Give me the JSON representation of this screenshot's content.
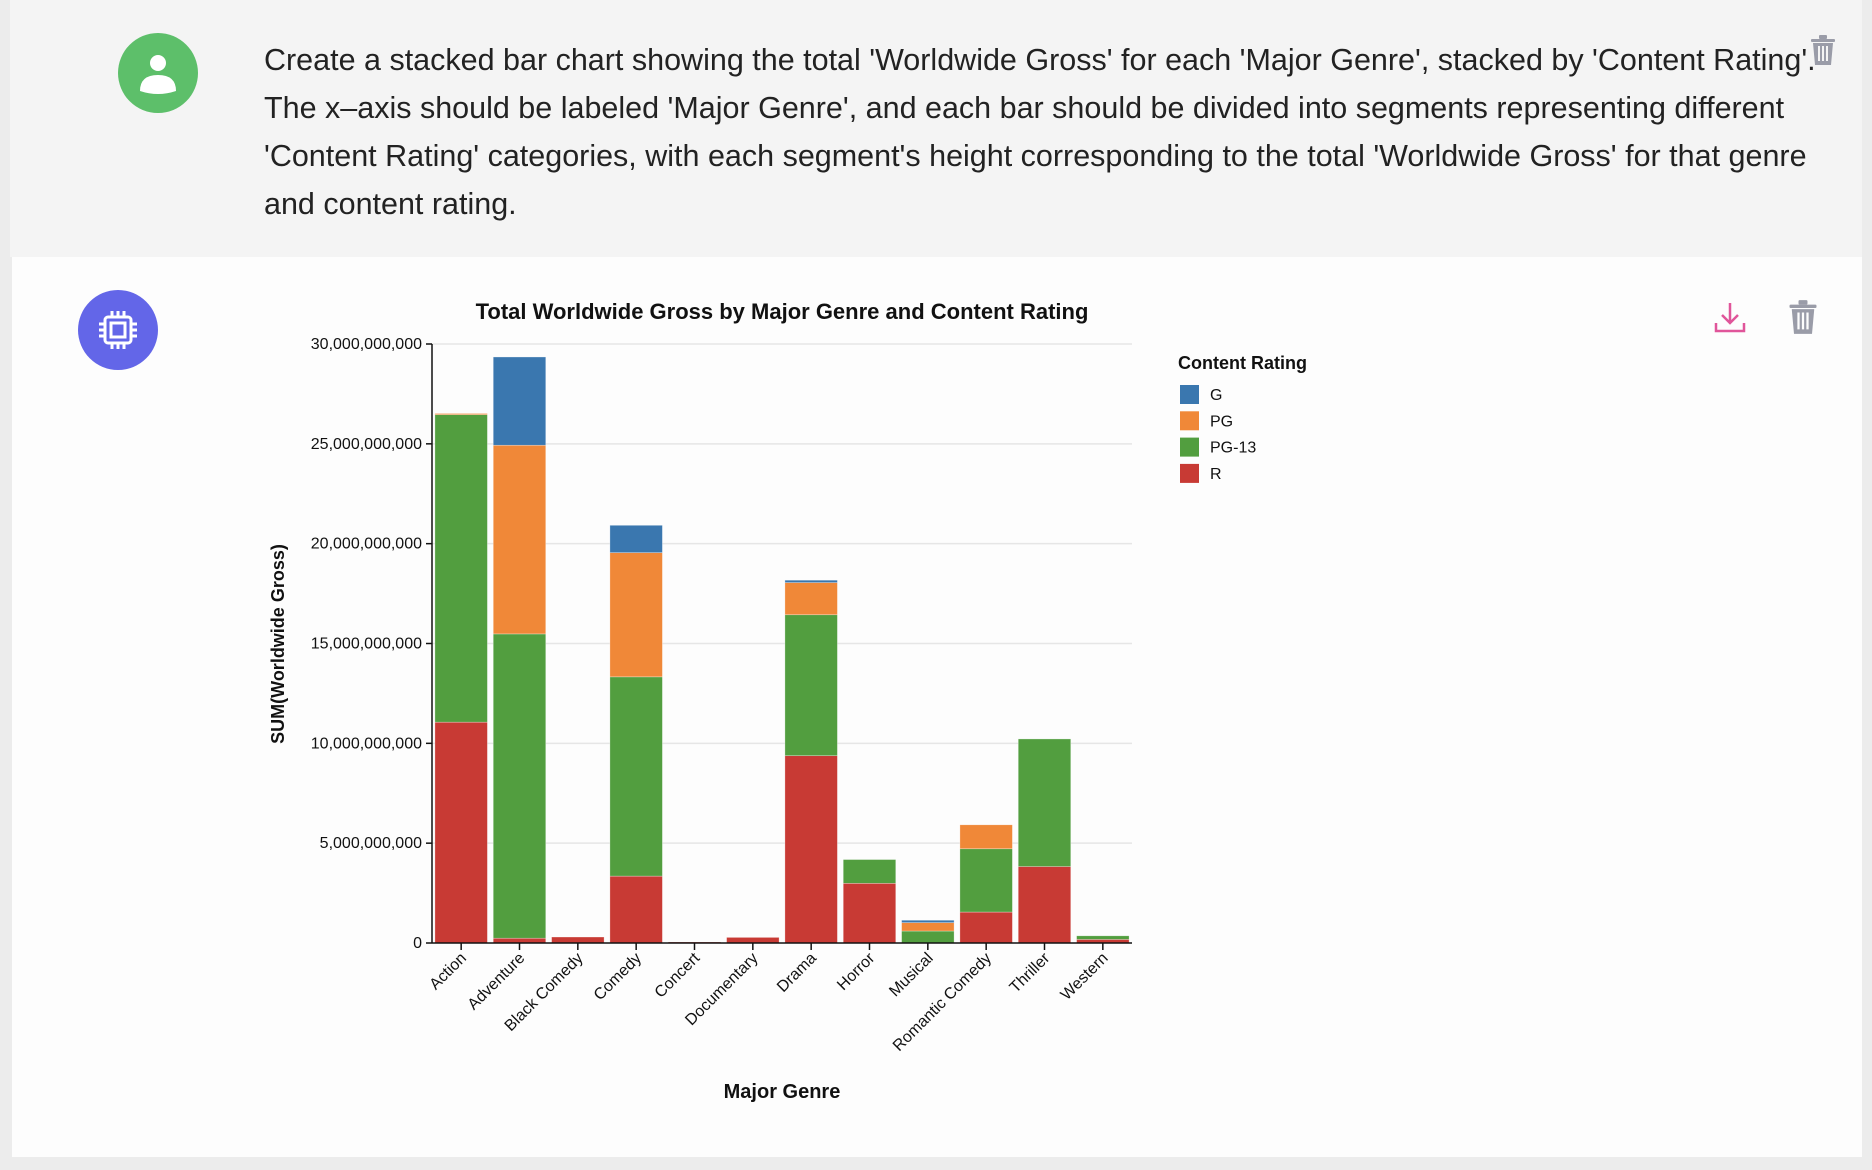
{
  "user_message": {
    "text": "Create a stacked bar chart showing the total 'Worldwide Gross' for each 'Major Genre', stacked by 'Content Rating'. The x–axis should be labeled 'Major Genre', and each bar should be divided into segments representing different 'Content Rating' categories, with each segment's height corresponding to the total 'Worldwide Gross' for that genre and content rating.",
    "avatar_icon": "user-icon",
    "avatar_color": "#5dbf6a",
    "delete_icon": "trash-icon"
  },
  "bot_message": {
    "avatar_icon": "chip-icon",
    "avatar_color": "#6366e8",
    "download_icon": "download-icon",
    "delete_icon": "trash-icon"
  },
  "chart_data": {
    "type": "bar",
    "stacked": true,
    "title": "Total Worldwide Gross by Major Genre and Content Rating",
    "xlabel": "Major Genre",
    "ylabel": "SUM(Worldwide Gross)",
    "ylim": [
      0,
      30000000000
    ],
    "yticks": [
      "0",
      "5,000,000,000",
      "10,000,000,000",
      "15,000,000,000",
      "20,000,000,000",
      "25,000,000,000",
      "30,000,000,000"
    ],
    "grid": true,
    "legend": {
      "title": "Content Rating",
      "placement": "right"
    },
    "categories": [
      "Action",
      "Adventure",
      "Black Comedy",
      "Comedy",
      "Concert",
      "Documentary",
      "Drama",
      "Horror",
      "Musical",
      "Romantic Comedy",
      "Thriller",
      "Western"
    ],
    "series": [
      {
        "name": "R",
        "color": "#c83a34",
        "values": [
          11060000000,
          240000000,
          300000000,
          3350000000,
          50000000,
          280000000,
          9380000000,
          2990000000,
          0,
          1550000000,
          3830000000,
          180000000
        ]
      },
      {
        "name": "PG-13",
        "color": "#529e3f",
        "values": [
          15400000000,
          15240000000,
          0,
          9980000000,
          0,
          0,
          7060000000,
          1190000000,
          600000000,
          3170000000,
          6390000000,
          180000000
        ]
      },
      {
        "name": "PG",
        "color": "#f08838",
        "values": [
          60000000,
          9450000000,
          0,
          6220000000,
          0,
          0,
          1610000000,
          0,
          420000000,
          1200000000,
          0,
          0
        ]
      },
      {
        "name": "G",
        "color": "#3a77af",
        "values": [
          0,
          4420000000,
          0,
          1370000000,
          0,
          0,
          120000000,
          0,
          120000000,
          0,
          0,
          0
        ]
      }
    ],
    "legend_order": [
      "G",
      "PG",
      "PG-13",
      "R"
    ]
  }
}
